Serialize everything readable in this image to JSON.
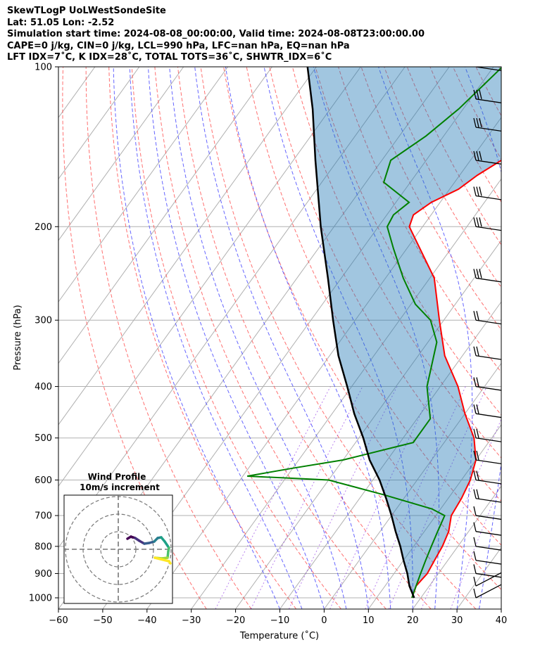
{
  "header": {
    "line1": "SkewTLogP UoLWestSondeSite",
    "line2": "Lat: 51.05   Lon: -2.52",
    "line3": "Simulation start time: 2024-08-08_00:00:00, Valid time: 2024-08-08T23:00:00.00",
    "line4": "CAPE=0 j/kg, CIN=0 j/kg, LCL=990 hPa, LFC=nan hPa, EQ=nan hPa",
    "line5": "LFT IDX=7˚C, K IDX=28˚C, TOTAL TOTS=36˚C, SHWTR_IDX=6˚C"
  },
  "chart_data": [
    {
      "type": "line",
      "title": "",
      "xlabel": "Temperature (˚C)",
      "ylabel": "Pressure (hPa)",
      "xlim": [
        -60,
        40
      ],
      "ylim": [
        1050,
        100
      ],
      "y_scale": "log",
      "skew": "skew-T",
      "grid": true,
      "x_ticks": [
        -60,
        -50,
        -40,
        -30,
        -20,
        -10,
        0,
        10,
        20,
        30,
        40
      ],
      "x_tick_labels": [
        "−60",
        "−50",
        "−40",
        "−30",
        "−20",
        "−10",
        "0",
        "10",
        "20",
        "30",
        "40"
      ],
      "y_ticks": [
        1000,
        900,
        800,
        700,
        600,
        500,
        400,
        300,
        200,
        100
      ],
      "y_tick_labels": [
        "1000",
        "900",
        "800",
        "700",
        "600",
        "500",
        "400",
        "300",
        "200",
        "100"
      ],
      "series": [
        {
          "role": "temperature",
          "color": "#ff0000",
          "pressure": [
            1000,
            950,
            900,
            850,
            800,
            750,
            700,
            650,
            600,
            550,
            500,
            450,
            400,
            350,
            300,
            250,
            200,
            190,
            180,
            170,
            160,
            150,
            140,
            130,
            120,
            110,
            100
          ],
          "values": [
            18,
            17,
            17.5,
            17,
            16.5,
            15.5,
            13.5,
            13,
            12,
            10,
            6,
            0,
            -6,
            -14,
            -21,
            -29,
            -43,
            -44,
            -42,
            -38,
            -36,
            -33,
            -28,
            -23,
            -19,
            -14.5,
            -10
          ]
        },
        {
          "role": "dewpoint",
          "color": "#008000",
          "pressure": [
            1000,
            950,
            900,
            850,
            800,
            750,
            700,
            680,
            640,
            600,
            590,
            570,
            550,
            510,
            460,
            400,
            330,
            300,
            280,
            250,
            220,
            200,
            190,
            180,
            165,
            150,
            135,
            120,
            100
          ],
          "values": [
            18,
            17,
            16,
            15,
            14,
            13,
            12,
            8,
            -5,
            -20,
            -39,
            -30,
            -20,
            -7,
            -7,
            -13,
            -18,
            -23,
            -29,
            -36,
            -43,
            -48,
            -48.5,
            -47,
            -56,
            -58,
            -54,
            -51,
            -48
          ]
        },
        {
          "role": "parcel",
          "color": "#000000",
          "pressure": [
            1000,
            950,
            900,
            850,
            800,
            750,
            700,
            650,
            600,
            550,
            500,
            450,
            400,
            350,
            300,
            250,
            200,
            150,
            120,
            100
          ],
          "values": [
            18.5,
            15.5,
            13,
            10,
            7,
            3.5,
            0,
            -4,
            -8.5,
            -14,
            -19,
            -25,
            -31,
            -38,
            -45,
            -53,
            -63,
            -75,
            -84,
            -92
          ]
        }
      ],
      "wind_barbs": {
        "pressure": [
          1000,
          950,
          900,
          850,
          800,
          750,
          700,
          650,
          600,
          550,
          500,
          450,
          400,
          350,
          300,
          250,
          200,
          175,
          150,
          130,
          115,
          100
        ]
      }
    },
    {
      "type": "scatter",
      "title": "Wind Profile",
      "subtitle": "10m/s increment",
      "rings": [
        10,
        20,
        30
      ],
      "colormap": "viridis"
    }
  ]
}
